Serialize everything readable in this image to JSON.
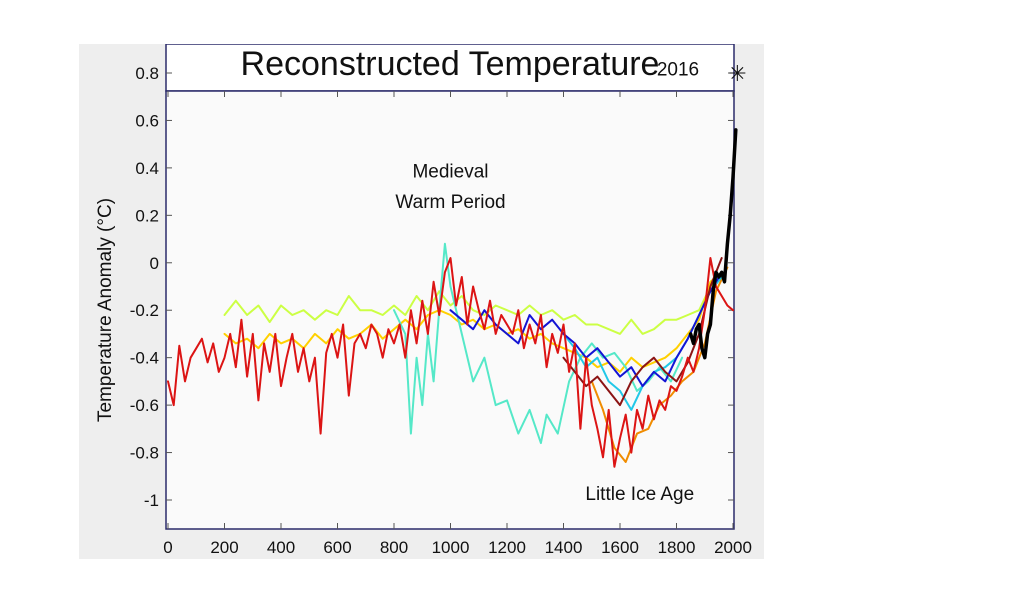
{
  "chart_data": {
    "type": "line",
    "title": "Reconstructed Temperature",
    "xlabel": "",
    "ylabel": "Temperature Anomaly (°C)",
    "xlim": [
      0,
      2000
    ],
    "ylim": [
      -1.1,
      0.9
    ],
    "xticks": [
      0,
      200,
      400,
      600,
      800,
      1000,
      1200,
      1400,
      1600,
      1800,
      2000
    ],
    "yticks": [
      0.8,
      0.6,
      0.4,
      0.2,
      0,
      -0.2,
      -0.4,
      -0.6,
      -0.8,
      -1
    ],
    "ytick_labels": [
      "0.8",
      "0.6",
      "0.4",
      "0.2",
      "0",
      "-0.2",
      "-0.4",
      "-0.6",
      "-0.8",
      "-1"
    ],
    "grid": false,
    "legend": "none",
    "annotations": [
      {
        "text": "Medieval",
        "x": 1000,
        "y": 0.36
      },
      {
        "text": "Warm Period",
        "x": 1000,
        "y": 0.23
      },
      {
        "text": "Little Ice Age",
        "x": 1670,
        "y": -1.0
      },
      {
        "text": "2016",
        "x": 1880,
        "y": 0.79
      }
    ],
    "marker": {
      "x": 2016,
      "y": 0.8,
      "symbol": "✳"
    },
    "series": [
      {
        "color": "#ccff44",
        "width": 2,
        "x": [
          200,
          240,
          280,
          320,
          360,
          400,
          440,
          480,
          520,
          560,
          600,
          640,
          680,
          720,
          760,
          800,
          840,
          880,
          920,
          960,
          1000,
          1040,
          1080,
          1120,
          1160,
          1200,
          1240,
          1280,
          1320,
          1360,
          1400,
          1440,
          1480,
          1520,
          1560,
          1600,
          1640,
          1680,
          1720,
          1760,
          1800,
          1840,
          1880,
          1920,
          1960
        ],
        "y": [
          -0.22,
          -0.16,
          -0.22,
          -0.18,
          -0.25,
          -0.18,
          -0.22,
          -0.2,
          -0.24,
          -0.2,
          -0.22,
          -0.14,
          -0.2,
          -0.2,
          -0.22,
          -0.18,
          -0.22,
          -0.14,
          -0.2,
          -0.12,
          -0.18,
          -0.14,
          -0.2,
          -0.22,
          -0.18,
          -0.2,
          -0.22,
          -0.18,
          -0.22,
          -0.2,
          -0.24,
          -0.22,
          -0.26,
          -0.26,
          -0.28,
          -0.3,
          -0.24,
          -0.3,
          -0.28,
          -0.24,
          -0.24,
          -0.22,
          -0.2,
          -0.1,
          -0.06
        ]
      },
      {
        "color": "#ffd000",
        "width": 2,
        "x": [
          200,
          240,
          280,
          320,
          360,
          400,
          440,
          480,
          520,
          560,
          600,
          640,
          680,
          720,
          760,
          800,
          840,
          880,
          920,
          960,
          1000,
          1040,
          1080,
          1120,
          1160,
          1200,
          1240,
          1280,
          1320,
          1360,
          1400,
          1440,
          1480,
          1520,
          1560,
          1600,
          1640,
          1680,
          1720,
          1760,
          1800,
          1840,
          1880,
          1920,
          1960
        ],
        "y": [
          -0.3,
          -0.34,
          -0.32,
          -0.36,
          -0.3,
          -0.34,
          -0.32,
          -0.36,
          -0.3,
          -0.34,
          -0.28,
          -0.32,
          -0.3,
          -0.26,
          -0.32,
          -0.28,
          -0.24,
          -0.28,
          -0.22,
          -0.2,
          -0.22,
          -0.26,
          -0.24,
          -0.28,
          -0.26,
          -0.3,
          -0.28,
          -0.32,
          -0.3,
          -0.34,
          -0.36,
          -0.38,
          -0.4,
          -0.44,
          -0.42,
          -0.46,
          -0.4,
          -0.44,
          -0.42,
          -0.4,
          -0.36,
          -0.3,
          -0.24,
          -0.08,
          -0.04
        ]
      },
      {
        "color": "#f08c00",
        "width": 2,
        "x": [
          1500,
          1540,
          1580,
          1620,
          1660,
          1700,
          1740,
          1780,
          1820,
          1860,
          1900,
          1940,
          1980
        ],
        "y": [
          -0.5,
          -0.62,
          -0.78,
          -0.84,
          -0.72,
          -0.7,
          -0.6,
          -0.56,
          -0.5,
          -0.46,
          -0.34,
          -0.12,
          -0.02
        ]
      },
      {
        "color": "#55e8c8",
        "width": 2,
        "x": [
          800,
          840,
          860,
          880,
          900,
          920,
          940,
          960,
          980,
          1000,
          1040,
          1080,
          1120,
          1160,
          1200,
          1240,
          1280,
          1320,
          1340,
          1380,
          1420,
          1460,
          1500,
          1540,
          1580,
          1620,
          1660,
          1700,
          1740,
          1780,
          1820
        ],
        "y": [
          -0.2,
          -0.3,
          -0.72,
          -0.4,
          -0.6,
          -0.3,
          -0.5,
          -0.2,
          0.08,
          -0.1,
          -0.3,
          -0.5,
          -0.4,
          -0.6,
          -0.58,
          -0.72,
          -0.62,
          -0.76,
          -0.64,
          -0.72,
          -0.5,
          -0.4,
          -0.34,
          -0.4,
          -0.38,
          -0.44,
          -0.54,
          -0.5,
          -0.44,
          -0.5,
          -0.4
        ]
      },
      {
        "color": "#22c8e8",
        "width": 2,
        "x": [
          1400,
          1440,
          1480,
          1520,
          1560,
          1600,
          1640,
          1680,
          1720,
          1760,
          1800,
          1840,
          1880,
          1920,
          1960
        ],
        "y": [
          -0.3,
          -0.36,
          -0.44,
          -0.4,
          -0.5,
          -0.54,
          -0.62,
          -0.52,
          -0.46,
          -0.44,
          -0.4,
          -0.32,
          -0.22,
          -0.12,
          -0.06
        ]
      },
      {
        "color": "#1414d4",
        "width": 2,
        "x": [
          1000,
          1040,
          1080,
          1120,
          1160,
          1200,
          1240,
          1280,
          1320,
          1360,
          1400,
          1440,
          1480,
          1520,
          1560,
          1600,
          1640,
          1680,
          1720,
          1760,
          1800,
          1840,
          1880,
          1920,
          1960
        ],
        "y": [
          -0.2,
          -0.24,
          -0.28,
          -0.2,
          -0.26,
          -0.3,
          -0.34,
          -0.22,
          -0.28,
          -0.24,
          -0.3,
          -0.34,
          -0.4,
          -0.36,
          -0.42,
          -0.48,
          -0.44,
          -0.52,
          -0.46,
          -0.5,
          -0.4,
          -0.32,
          -0.22,
          -0.12,
          -0.04
        ]
      },
      {
        "color": "#8c1414",
        "width": 2,
        "x": [
          1400,
          1440,
          1480,
          1520,
          1560,
          1600,
          1640,
          1680,
          1720,
          1760,
          1800,
          1840,
          1880,
          1920,
          1960
        ],
        "y": [
          -0.4,
          -0.46,
          -0.52,
          -0.48,
          -0.54,
          -0.6,
          -0.5,
          -0.44,
          -0.4,
          -0.46,
          -0.5,
          -0.42,
          -0.3,
          -0.1,
          0.02
        ]
      },
      {
        "color": "#dc1414",
        "width": 2,
        "x": [
          0,
          20,
          40,
          60,
          80,
          100,
          120,
          140,
          160,
          180,
          200,
          220,
          240,
          260,
          280,
          300,
          320,
          340,
          360,
          380,
          400,
          420,
          440,
          460,
          480,
          500,
          520,
          540,
          560,
          580,
          600,
          620,
          640,
          660,
          680,
          700,
          720,
          740,
          760,
          780,
          800,
          820,
          840,
          860,
          880,
          900,
          920,
          940,
          960,
          980,
          1000,
          1020,
          1040,
          1060,
          1080,
          1100,
          1120,
          1140,
          1160,
          1180,
          1200,
          1220,
          1240,
          1260,
          1280,
          1300,
          1320,
          1340,
          1360,
          1380,
          1400,
          1420,
          1440,
          1460,
          1480,
          1500,
          1520,
          1540,
          1560,
          1580,
          1600,
          1620,
          1640,
          1660,
          1680,
          1700,
          1720,
          1740,
          1760,
          1780,
          1800,
          1820,
          1840,
          1860,
          1880,
          1900,
          1920,
          1940,
          1960,
          1980,
          2000
        ],
        "y": [
          -0.5,
          -0.6,
          -0.35,
          -0.5,
          -0.4,
          -0.36,
          -0.32,
          -0.42,
          -0.34,
          -0.46,
          -0.4,
          -0.3,
          -0.44,
          -0.24,
          -0.48,
          -0.3,
          -0.58,
          -0.34,
          -0.46,
          -0.3,
          -0.52,
          -0.4,
          -0.3,
          -0.46,
          -0.36,
          -0.5,
          -0.4,
          -0.72,
          -0.38,
          -0.3,
          -0.4,
          -0.26,
          -0.56,
          -0.34,
          -0.3,
          -0.36,
          -0.26,
          -0.3,
          -0.4,
          -0.28,
          -0.34,
          -0.26,
          -0.4,
          -0.2,
          -0.34,
          -0.16,
          -0.3,
          -0.08,
          -0.22,
          -0.04,
          0.02,
          -0.18,
          -0.06,
          -0.26,
          -0.1,
          -0.2,
          -0.28,
          -0.16,
          -0.3,
          -0.22,
          -0.26,
          -0.3,
          -0.2,
          -0.36,
          -0.26,
          -0.34,
          -0.22,
          -0.44,
          -0.3,
          -0.38,
          -0.26,
          -0.46,
          -0.34,
          -0.7,
          -0.4,
          -0.6,
          -0.7,
          -0.82,
          -0.62,
          -0.86,
          -0.74,
          -0.64,
          -0.8,
          -0.62,
          -0.7,
          -0.56,
          -0.66,
          -0.58,
          -0.62,
          -0.52,
          -0.54,
          -0.48,
          -0.4,
          -0.46,
          -0.36,
          -0.2,
          0.02,
          -0.1,
          -0.14,
          -0.18,
          -0.2
        ]
      },
      {
        "color": "#000000",
        "width": 3.5,
        "x": [
          1850,
          1860,
          1870,
          1880,
          1890,
          1900,
          1910,
          1920,
          1930,
          1940,
          1950,
          1960,
          1970,
          1980,
          1990,
          2000,
          2010
        ],
        "y": [
          -0.3,
          -0.34,
          -0.28,
          -0.26,
          -0.36,
          -0.4,
          -0.3,
          -0.26,
          -0.12,
          -0.04,
          -0.06,
          -0.04,
          -0.08,
          0.08,
          0.2,
          0.36,
          0.56
        ]
      }
    ]
  }
}
